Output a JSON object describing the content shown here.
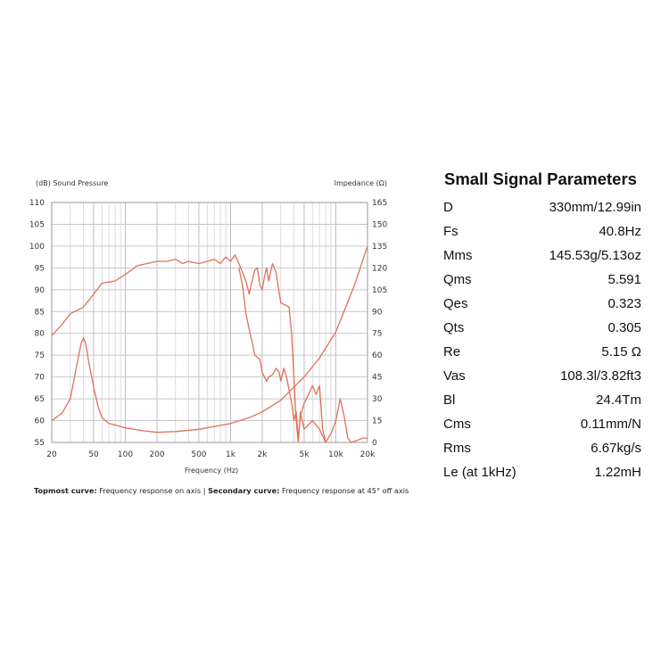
{
  "chart_data": {
    "type": "line",
    "title": "",
    "left_axis_label": "(dB) Sound Pressure",
    "right_axis_label": "Impedance (Ω)",
    "xlabel": "Frequency (Hz)",
    "x_scale": "log",
    "xlim": [
      20,
      20000
    ],
    "ylim_left": [
      55,
      110
    ],
    "ylim_right": [
      0,
      165
    ],
    "grid": true,
    "x_ticks": [
      {
        "value": 20,
        "label": "20"
      },
      {
        "value": 50,
        "label": "50"
      },
      {
        "value": 100,
        "label": "100"
      },
      {
        "value": 200,
        "label": "200"
      },
      {
        "value": 500,
        "label": "500"
      },
      {
        "value": 1000,
        "label": "1k"
      },
      {
        "value": 2000,
        "label": "2k"
      },
      {
        "value": 5000,
        "label": "5k"
      },
      {
        "value": 10000,
        "label": "10k"
      },
      {
        "value": 20000,
        "label": "20k"
      }
    ],
    "y_ticks_left": [
      "110",
      "105",
      "100",
      "95",
      "90",
      "85",
      "80",
      "75",
      "70",
      "65",
      "60",
      "55"
    ],
    "y_ticks_right": [
      "165",
      "150",
      "135",
      "120",
      "105",
      "90",
      "75",
      "60",
      "45",
      "30",
      "15",
      "0"
    ],
    "series": [
      {
        "name": "Frequency response on axis",
        "axis": "left",
        "color": "#e0705a",
        "points": [
          [
            20,
            79.5
          ],
          [
            25,
            82
          ],
          [
            30,
            84.5
          ],
          [
            40,
            86
          ],
          [
            50,
            89
          ],
          [
            60,
            91.5
          ],
          [
            80,
            92
          ],
          [
            100,
            93.5
          ],
          [
            130,
            95.5
          ],
          [
            160,
            96
          ],
          [
            200,
            96.5
          ],
          [
            250,
            96.5
          ],
          [
            300,
            97
          ],
          [
            350,
            96
          ],
          [
            400,
            96.5
          ],
          [
            500,
            96
          ],
          [
            600,
            96.5
          ],
          [
            700,
            97
          ],
          [
            800,
            96
          ],
          [
            900,
            97.5
          ],
          [
            1000,
            96.5
          ],
          [
            1100,
            98
          ],
          [
            1200,
            96
          ],
          [
            1300,
            94
          ],
          [
            1400,
            92
          ],
          [
            1500,
            89
          ],
          [
            1600,
            92
          ],
          [
            1700,
            94.5
          ],
          [
            1800,
            95
          ],
          [
            1900,
            91
          ],
          [
            2000,
            90
          ],
          [
            2100,
            93
          ],
          [
            2200,
            95
          ],
          [
            2300,
            92
          ],
          [
            2500,
            96
          ],
          [
            2700,
            94
          ],
          [
            3000,
            87
          ],
          [
            3300,
            86.5
          ],
          [
            3600,
            86
          ],
          [
            3800,
            80
          ],
          [
            4000,
            70
          ],
          [
            4200,
            60
          ],
          [
            4400,
            55
          ],
          [
            4600,
            62
          ],
          [
            5000,
            58
          ],
          [
            6000,
            60
          ],
          [
            7000,
            58
          ],
          [
            8000,
            55
          ]
        ]
      },
      {
        "name": "Frequency response at 45° off axis",
        "axis": "left",
        "color": "#e0705a",
        "points": [
          [
            1200,
            95
          ],
          [
            1300,
            91
          ],
          [
            1400,
            84.5
          ],
          [
            1500,
            81
          ],
          [
            1600,
            78
          ],
          [
            1700,
            75
          ],
          [
            1800,
            74.5
          ],
          [
            1900,
            74
          ],
          [
            2000,
            71
          ],
          [
            2100,
            70
          ],
          [
            2200,
            69
          ],
          [
            2300,
            70
          ],
          [
            2500,
            70.5
          ],
          [
            2700,
            72
          ],
          [
            2900,
            71
          ],
          [
            3000,
            69
          ],
          [
            3200,
            72
          ],
          [
            3400,
            70
          ],
          [
            3600,
            67
          ],
          [
            3800,
            64
          ],
          [
            4000,
            60
          ],
          [
            4200,
            62
          ],
          [
            4400,
            56
          ],
          [
            4600,
            61
          ],
          [
            5000,
            64
          ],
          [
            5500,
            66
          ],
          [
            6000,
            68
          ],
          [
            6500,
            66
          ],
          [
            7000,
            68
          ],
          [
            7500,
            58
          ],
          [
            8000,
            55
          ],
          [
            9000,
            57
          ],
          [
            10000,
            60
          ],
          [
            11000,
            65
          ],
          [
            12000,
            61
          ],
          [
            13000,
            56
          ],
          [
            14000,
            55
          ],
          [
            16000,
            55.5
          ],
          [
            18000,
            56
          ],
          [
            20000,
            56
          ]
        ]
      },
      {
        "name": "Impedance",
        "axis": "right",
        "color": "#e0705a",
        "points": [
          [
            20,
            15
          ],
          [
            25,
            20
          ],
          [
            30,
            30
          ],
          [
            35,
            55
          ],
          [
            38,
            68
          ],
          [
            40,
            72
          ],
          [
            42,
            68
          ],
          [
            45,
            55
          ],
          [
            50,
            38
          ],
          [
            55,
            25
          ],
          [
            60,
            17
          ],
          [
            70,
            13
          ],
          [
            80,
            12
          ],
          [
            100,
            10
          ],
          [
            150,
            8
          ],
          [
            200,
            7
          ],
          [
            300,
            7.5
          ],
          [
            500,
            9
          ],
          [
            700,
            11
          ],
          [
            1000,
            13
          ],
          [
            1500,
            17
          ],
          [
            2000,
            21
          ],
          [
            3000,
            29
          ],
          [
            5000,
            45
          ],
          [
            7000,
            58
          ],
          [
            10000,
            76
          ],
          [
            15000,
            108
          ],
          [
            20000,
            135
          ]
        ]
      }
    ]
  },
  "caption": {
    "topmost_label": "Topmost curve:",
    "topmost_text": " Frequency response on axis",
    "separator": " | ",
    "secondary_label": "Secondary curve:",
    "secondary_text": " Frequency response at 45° off axis"
  },
  "params": {
    "title": "Small Signal Parameters",
    "rows": [
      {
        "name": "D",
        "value": "330mm/12.99in"
      },
      {
        "name": "Fs",
        "value": "40.8Hz"
      },
      {
        "name": "Mms",
        "value": "145.53g/5.13oz"
      },
      {
        "name": "Qms",
        "value": "5.591"
      },
      {
        "name": "Qes",
        "value": "0.323"
      },
      {
        "name": "Qts",
        "value": "0.305"
      },
      {
        "name": "Re",
        "value": "5.15 Ω"
      },
      {
        "name": "Vas",
        "value": "108.3l/3.82ft3"
      },
      {
        "name": "Bl",
        "value": "24.4Tm"
      },
      {
        "name": "Cms",
        "value": "0.11mm/N"
      },
      {
        "name": "Rms",
        "value": "6.67kg/s"
      },
      {
        "name": "Le (at 1kHz)",
        "value": "1.22mH"
      }
    ]
  }
}
